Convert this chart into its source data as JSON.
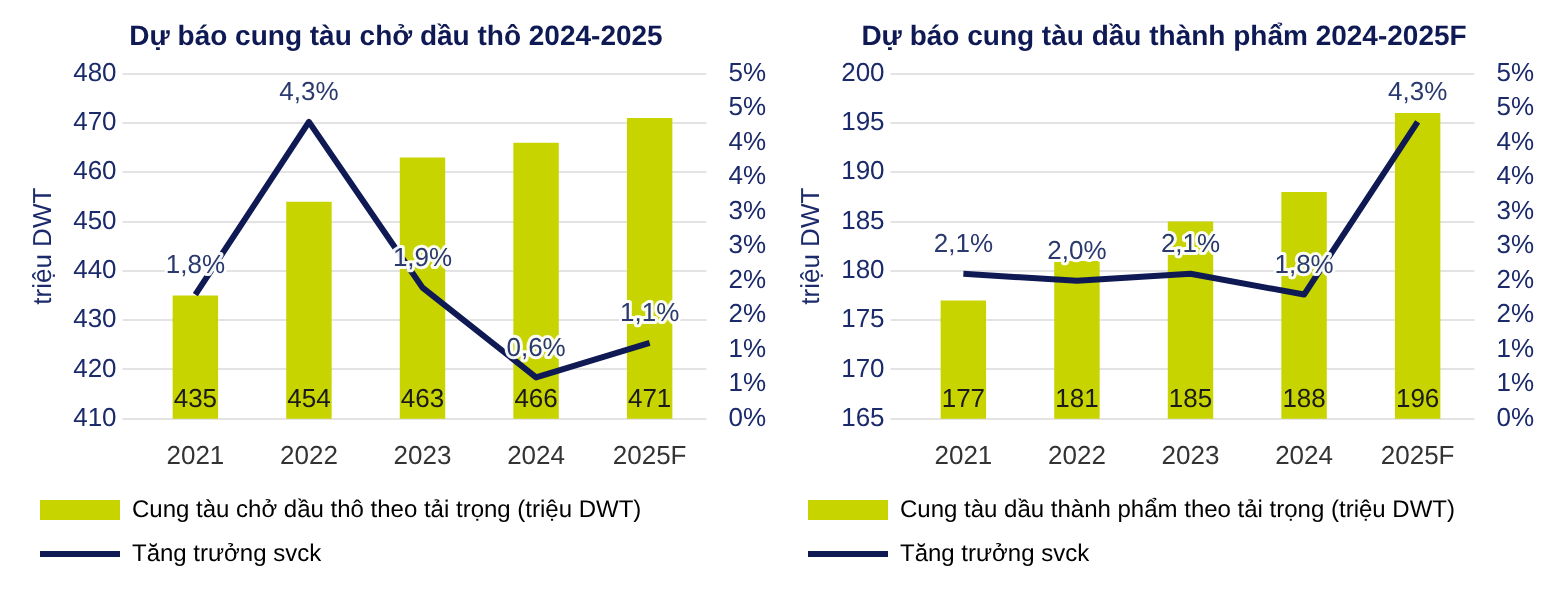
{
  "chart_data": [
    {
      "type": "bar",
      "title": "Dự báo cung tàu chở dầu thô 2024-2025",
      "categories": [
        "2021",
        "2022",
        "2023",
        "2024",
        "2025F"
      ],
      "ylabel": "triệu DWT",
      "ylim": [
        410,
        480
      ],
      "yticks": [
        410,
        420,
        430,
        440,
        450,
        460,
        470,
        480
      ],
      "y2lim": [
        0,
        5
      ],
      "y2ticks": [
        {
          "value": 0,
          "label": "0%"
        },
        {
          "value": 0.5,
          "label": "1%"
        },
        {
          "value": 1,
          "label": "1%"
        },
        {
          "value": 1.5,
          "label": "2%"
        },
        {
          "value": 2,
          "label": "2%"
        },
        {
          "value": 2.5,
          "label": "3%"
        },
        {
          "value": 3,
          "label": "3%"
        },
        {
          "value": 3.5,
          "label": "4%"
        },
        {
          "value": 4,
          "label": "4%"
        },
        {
          "value": 4.5,
          "label": "5%"
        },
        {
          "value": 5,
          "label": "5%"
        }
      ],
      "grid": "y",
      "legend": "bottom",
      "series": [
        {
          "name": "Cung tàu chở dầu thô theo tải trọng (triệu DWT)",
          "color": "#c8d400",
          "values": [
            435,
            454,
            463,
            466,
            471
          ],
          "value_labels": [
            "435",
            "454",
            "463",
            "466",
            "471"
          ]
        },
        {
          "name": "Tăng trưởng svck",
          "type": "line",
          "axis": "y2",
          "color": "#0f1a55",
          "marker": "none",
          "values": [
            1.8,
            4.3,
            1.9,
            0.6,
            1.1
          ],
          "value_labels": [
            "1,8%",
            "4,3%",
            "1,9%",
            "0,6%",
            "1,1%"
          ]
        }
      ]
    },
    {
      "type": "bar",
      "title": "Dự báo cung tàu dầu thành phẩm 2024-2025F",
      "categories": [
        "2021",
        "2022",
        "2023",
        "2024",
        "2025F"
      ],
      "ylabel": "triệu DWT",
      "ylim": [
        165,
        200
      ],
      "yticks": [
        165,
        170,
        175,
        180,
        185,
        190,
        195,
        200
      ],
      "y2lim": [
        0,
        5
      ],
      "y2ticks": [
        {
          "value": 0,
          "label": "0%"
        },
        {
          "value": 0.5,
          "label": "1%"
        },
        {
          "value": 1,
          "label": "1%"
        },
        {
          "value": 1.5,
          "label": "2%"
        },
        {
          "value": 2,
          "label": "2%"
        },
        {
          "value": 2.5,
          "label": "3%"
        },
        {
          "value": 3,
          "label": "3%"
        },
        {
          "value": 3.5,
          "label": "4%"
        },
        {
          "value": 4,
          "label": "4%"
        },
        {
          "value": 4.5,
          "label": "5%"
        },
        {
          "value": 5,
          "label": "5%"
        }
      ],
      "grid": "y",
      "legend": "bottom",
      "series": [
        {
          "name": "Cung tàu dầu thành phẩm theo tải trọng (triệu DWT)",
          "color": "#c8d400",
          "values": [
            177,
            181,
            185,
            188,
            196
          ],
          "value_labels": [
            "177",
            "181",
            "185",
            "188",
            "196"
          ]
        },
        {
          "name": "Tăng trưởng svck",
          "type": "line",
          "axis": "y2",
          "color": "#0f1a55",
          "marker": "none",
          "values": [
            2.1,
            2.0,
            2.1,
            1.8,
            4.3
          ],
          "value_labels": [
            "2,1%",
            "2,0%",
            "2,1%",
            "1,8%",
            "4,3%"
          ]
        }
      ]
    }
  ]
}
